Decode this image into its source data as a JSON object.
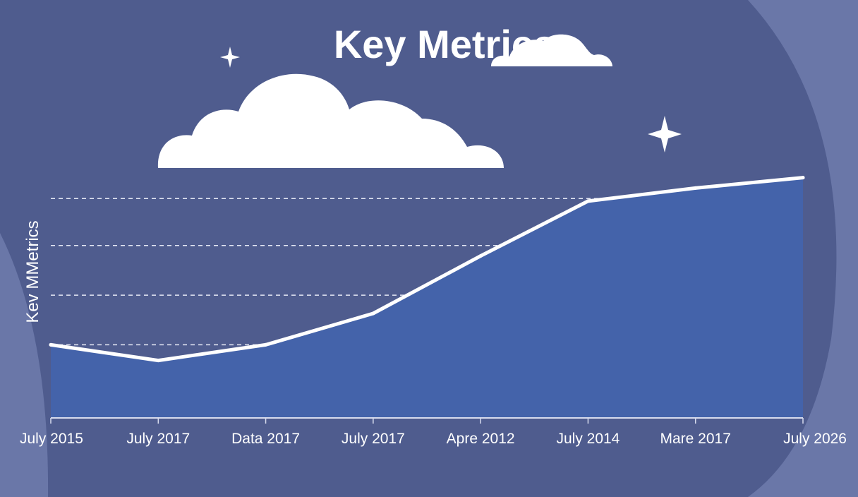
{
  "colors": {
    "background": "#4f5c8e",
    "panel": "#56628f",
    "side_shape": "#6a77a8",
    "area_fill": "#4463aa",
    "line": "#ffffff",
    "grid": "#e6e9f5"
  },
  "chart_data": {
    "type": "area",
    "title": "Key Metrics",
    "ylabel": "Kev MMetrics",
    "xlabel": "",
    "categories": [
      "July 2015",
      "July 2017",
      "Data 2017",
      "July 2017",
      "Apre 2012",
      "July 2014",
      "Mare 2017",
      "July 2026"
    ],
    "series": [
      {
        "values": [
          0.28,
          0.22,
          0.28,
          0.4,
          0.62,
          0.83,
          0.88,
          0.92
        ]
      }
    ],
    "ylim": [
      0,
      1
    ],
    "grid": true,
    "legend": "none",
    "decorations": [
      "cloud-icon",
      "cloud-icon",
      "sparkle-icon",
      "sparkle-icon"
    ]
  }
}
